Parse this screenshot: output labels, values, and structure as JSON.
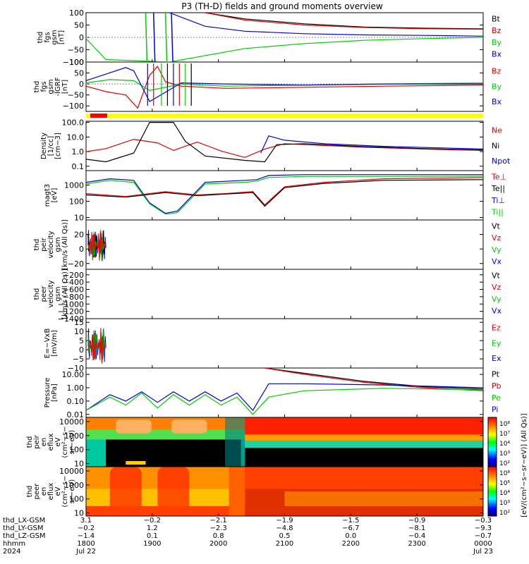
{
  "title": "P3 (TH-D) fields and ground moments overview",
  "colors": {
    "black": "#000000",
    "red": "#e00000",
    "green": "#00cc00",
    "blue": "#0000dd",
    "yellow": "#ffff00",
    "redbar": "#ff0000"
  },
  "panels": [
    {
      "id": "fgs",
      "ylabel": [
        "thd",
        "fgs",
        "gsm",
        "[nT]"
      ],
      "ticks": [
        "100",
        "50",
        "0",
        "−50",
        "−100"
      ],
      "tick_values": [
        100,
        50,
        0,
        -50,
        -100
      ],
      "ylim": [
        -100,
        100
      ],
      "legend": [
        {
          "text": "Bt",
          "color": "black"
        },
        {
          "text": "Bz",
          "color": "red"
        },
        {
          "text": "By",
          "color": "green"
        },
        {
          "text": "Bx",
          "color": "blue"
        }
      ]
    },
    {
      "id": "fgs_z",
      "ylabel": [
        "thd",
        "fgs",
        "gsm",
        "-IGRF",
        "[nT]"
      ],
      "ticks": [
        "100",
        "50",
        "0",
        "−50",
        "−100"
      ],
      "tick_values": [
        100,
        50,
        0,
        -50,
        -100
      ],
      "ylim": [
        -125,
        100
      ],
      "legend": [
        {
          "text": "Bz",
          "color": "red"
        },
        {
          "text": "By",
          "color": "green"
        },
        {
          "text": "Bx",
          "color": "blue"
        }
      ]
    },
    {
      "id": "density",
      "ylabel": [
        "Density",
        "[1/cc]",
        "[cm−3]"
      ],
      "ticks": [
        "100.0",
        "10.0",
        "1.0",
        "0.1"
      ],
      "tick_values": [
        100,
        10,
        1,
        0.1
      ],
      "ylim": [
        0.05,
        120
      ],
      "log": true,
      "legend": [
        {
          "text": "Ne",
          "color": "red"
        },
        {
          "text": "Ni",
          "color": "black"
        },
        {
          "text": "Npot",
          "color": "blue"
        }
      ]
    },
    {
      "id": "temp",
      "ylabel": [
        "magt3",
        "[eV]"
      ],
      "ticks": [
        "1000",
        "100",
        "10"
      ],
      "tick_values": [
        1000,
        100,
        10
      ],
      "ylim": [
        7,
        8000
      ],
      "log": true,
      "legend": [
        {
          "text": "Te⊥",
          "color": "red"
        },
        {
          "text": "Te||",
          "color": "black"
        },
        {
          "text": "Ti⊥",
          "color": "blue"
        },
        {
          "text": "Ti||",
          "color": "green"
        }
      ]
    },
    {
      "id": "peir_v",
      "ylabel": [
        "thd",
        "peir",
        "velocity",
        "gsm",
        "[km/s (All Qs)]"
      ],
      "ticks": [
        "20",
        "0",
        "−20"
      ],
      "tick_values": [
        20,
        0,
        -20
      ],
      "ylim": [
        -28,
        40
      ],
      "legend": [
        {
          "text": "Vt",
          "color": "black"
        },
        {
          "text": "Vz",
          "color": "red"
        },
        {
          "text": "Vy",
          "color": "green"
        },
        {
          "text": "Vx",
          "color": "blue"
        }
      ]
    },
    {
      "id": "peer_v",
      "ylabel": [
        "thd",
        "peer",
        "velocity",
        "gsm",
        "[km/s (All Qs)]"
      ],
      "ticks": [
        "−200",
        "−400",
        "−600",
        "−800",
        "−1000",
        "−1200",
        "−1400"
      ],
      "tick_values": [
        -200,
        -400,
        -600,
        -800,
        -1000,
        -1200,
        -1400
      ],
      "ylim": [
        -1400,
        -50
      ],
      "legend": [
        {
          "text": "Vt",
          "color": "black"
        },
        {
          "text": "Vz",
          "color": "red"
        },
        {
          "text": "Vy",
          "color": "green"
        },
        {
          "text": "Vx",
          "color": "blue"
        }
      ]
    },
    {
      "id": "efield",
      "ylabel": [
        "E=−VxB",
        "[mV/m]"
      ],
      "ticks": [
        "15",
        "10",
        "5",
        "0",
        "−5",
        "−10"
      ],
      "tick_values": [
        15,
        10,
        5,
        0,
        -5,
        -10
      ],
      "ylim": [
        -10,
        17
      ],
      "legend": [
        {
          "text": "Ez",
          "color": "red"
        },
        {
          "text": "Ey",
          "color": "green"
        },
        {
          "text": "Ex",
          "color": "blue"
        }
      ]
    },
    {
      "id": "pressure",
      "ylabel": [
        "Pressure",
        "[nPa]"
      ],
      "ticks": [
        "10.00",
        "1.00",
        "0.10",
        "0.01"
      ],
      "tick_values": [
        10,
        1,
        0.1,
        0.01
      ],
      "ylim": [
        0.006,
        30
      ],
      "log": true,
      "legend": [
        {
          "text": "Pt",
          "color": "black"
        },
        {
          "text": "Pb",
          "color": "red"
        },
        {
          "text": "Pe",
          "color": "green"
        },
        {
          "text": "Pi",
          "color": "blue"
        }
      ]
    },
    {
      "id": "peir_spec",
      "ylabel": [
        "thd",
        "peir",
        "en",
        "eflux",
        "eV",
        "(cm²−s−",
        "sr−eV)"
      ],
      "ticks": [
        "10000",
        "1000",
        "100",
        "10"
      ],
      "tick_values": [
        10000,
        1000,
        100,
        10
      ],
      "ylim": [
        6,
        20000
      ],
      "log": true
    },
    {
      "id": "peer_spec",
      "ylabel": [
        "thd",
        "peer",
        "en",
        "eflux",
        "eV",
        "(cm²−s−",
        "sr−eV)"
      ],
      "ticks": [
        "10000",
        "1000",
        "100",
        "10"
      ],
      "tick_values": [
        10000,
        1000,
        100,
        10
      ],
      "ylim": [
        6,
        20000
      ],
      "log": true
    }
  ],
  "colorbar": {
    "label": "[eV/(cm²−s−sr−eV)] (All Qs)]",
    "ticks_top": [
      "10⁸",
      "10⁷",
      "10⁴",
      "10³",
      "10²"
    ],
    "ticks_bottom": [
      "10⁸",
      "10⁶",
      "10⁴",
      "10³",
      "10²"
    ]
  },
  "xaxis": {
    "row_labels": [
      "thd_LX-GSM",
      "thd_LY-GSM",
      "thd_LZ-GSM",
      "hhmm",
      "2024"
    ],
    "ticks": [
      {
        "time": "1800",
        "lx": "3.1",
        "ly": "−0.2",
        "lz": "−1.4",
        "date": "Jul 22"
      },
      {
        "time": "1900",
        "lx": "−0.2",
        "ly": "1.2",
        "lz": "0.1",
        "date": ""
      },
      {
        "time": "2000",
        "lx": "−2.1",
        "ly": "−2.3",
        "lz": "0.8",
        "date": ""
      },
      {
        "time": "2100",
        "lx": "−1.9",
        "ly": "−4.8",
        "lz": "0.5",
        "date": ""
      },
      {
        "time": "2200",
        "lx": "−1.5",
        "ly": "−6.7",
        "lz": "0.0",
        "date": ""
      },
      {
        "time": "2300",
        "lx": "−0.9",
        "ly": "−8.1",
        "lz": "−0.4",
        "date": ""
      },
      {
        "time": "0000",
        "lx": "−0.3",
        "ly": "−9.3",
        "lz": "−0.7",
        "date": "Jul 23"
      }
    ]
  },
  "chart_data": {
    "type": "line",
    "title": "P3 (TH-D) fields and ground moments overview",
    "x_range": [
      "1800",
      "0000"
    ],
    "series_descriptions": [
      {
        "panel": "fgs",
        "name": "Bt",
        "t": [
          0.3,
          0.4,
          0.55,
          0.7,
          0.85,
          1.0
        ],
        "v": [
          100,
          75,
          55,
          42,
          37,
          35
        ]
      },
      {
        "panel": "fgs",
        "name": "Bz",
        "t": [
          0.3,
          0.4,
          0.55,
          0.7,
          0.85,
          1.0
        ],
        "v": [
          100,
          70,
          50,
          40,
          35,
          33
        ]
      },
      {
        "panel": "fgs",
        "name": "Bx",
        "t": [
          0.21,
          0.3,
          0.4,
          0.55,
          0.7,
          0.85,
          1.0
        ],
        "v": [
          100,
          45,
          25,
          15,
          10,
          8,
          5
        ]
      },
      {
        "panel": "fgs",
        "name": "By",
        "t": [
          0.0,
          0.05,
          0.21,
          0.4,
          0.55,
          0.7,
          0.85,
          1.0
        ],
        "v": [
          -5,
          -90,
          -100,
          -45,
          -25,
          -12,
          -5,
          0
        ]
      },
      {
        "panel": "fgs_z",
        "name": "Bz",
        "t": [
          0.0,
          0.05,
          0.1,
          0.13,
          0.16,
          0.18,
          0.2,
          0.24,
          0.35,
          0.55,
          0.75,
          1.0
        ],
        "v": [
          -10,
          -35,
          -50,
          -110,
          40,
          80,
          10,
          -10,
          -20,
          -15,
          -10,
          -5
        ]
      },
      {
        "panel": "fgs_z",
        "name": "By",
        "t": [
          0.0,
          0.06,
          0.12,
          0.16,
          0.24,
          0.35,
          0.55,
          0.75,
          1.0
        ],
        "v": [
          5,
          20,
          15,
          -30,
          0,
          -10,
          -5,
          0,
          5
        ]
      },
      {
        "panel": "fgs_z",
        "name": "Bx",
        "t": [
          0.0,
          0.05,
          0.1,
          0.12,
          0.16,
          0.24,
          0.35,
          0.55,
          0.75,
          1.0
        ],
        "v": [
          15,
          45,
          75,
          60,
          -80,
          5,
          0,
          -5,
          0,
          0
        ]
      },
      {
        "panel": "density",
        "name": "Ne",
        "t": [
          0.0,
          0.05,
          0.12,
          0.18,
          0.22,
          0.28,
          0.34,
          0.4,
          0.45,
          0.5,
          0.55,
          0.7,
          0.85,
          1.0
        ],
        "v": [
          1.0,
          1.6,
          7,
          4,
          1.2,
          4.5,
          1.1,
          0.4,
          1.5,
          3.5,
          3,
          2,
          1.5,
          1.2
        ]
      },
      {
        "panel": "density",
        "name": "Ni",
        "t": [
          0.0,
          0.05,
          0.12,
          0.16,
          0.22,
          0.25,
          0.3,
          0.4,
          0.45,
          0.48,
          0.55,
          0.7,
          0.85,
          1.0
        ],
        "v": [
          0.3,
          0.2,
          0.8,
          100,
          100,
          5,
          0.5,
          0.25,
          0.2,
          3,
          3.5,
          2.2,
          1.6,
          1.3
        ]
      },
      {
        "panel": "density",
        "name": "Npot",
        "t": [
          0.44,
          0.46,
          0.5,
          0.6,
          0.75,
          1.0
        ],
        "v": [
          0.8,
          12,
          6,
          3.5,
          2.3,
          1.5
        ]
      },
      {
        "panel": "temp",
        "name": "Ti⊥",
        "t": [
          0.0,
          0.06,
          0.12,
          0.16,
          0.2,
          0.23,
          0.3,
          0.4,
          0.43,
          0.46,
          0.55,
          0.7,
          1.0
        ],
        "v": [
          1500,
          2500,
          2000,
          80,
          18,
          25,
          1500,
          2000,
          2200,
          4000,
          4500,
          4500,
          4500
        ]
      },
      {
        "panel": "temp",
        "name": "Ti||",
        "t": [
          0.0,
          0.06,
          0.12,
          0.16,
          0.2,
          0.23,
          0.3,
          0.4,
          0.43,
          0.46,
          0.55,
          0.7,
          1.0
        ],
        "v": [
          1200,
          2000,
          1500,
          70,
          16,
          20,
          1200,
          1500,
          1800,
          3000,
          3500,
          3500,
          3600
        ]
      },
      {
        "panel": "temp",
        "name": "Te⊥",
        "t": [
          0.0,
          0.1,
          0.2,
          0.28,
          0.35,
          0.42,
          0.45,
          0.5,
          0.6,
          0.75,
          1.0
        ],
        "v": [
          300,
          200,
          400,
          250,
          300,
          400,
          60,
          800,
          1500,
          2500,
          3000
        ]
      },
      {
        "panel": "temp",
        "name": "Te||",
        "t": [
          0.0,
          0.1,
          0.2,
          0.28,
          0.35,
          0.42,
          0.45,
          0.5,
          0.6,
          0.75,
          1.0
        ],
        "v": [
          250,
          180,
          350,
          220,
          280,
          350,
          50,
          700,
          1300,
          2000,
          2200
        ]
      },
      {
        "panel": "pressure",
        "name": "Pt",
        "t": [
          0.45,
          0.55,
          0.7,
          0.85,
          1.0
        ],
        "v": [
          30,
          12,
          3,
          1.2,
          0.8
        ]
      },
      {
        "panel": "pressure",
        "name": "Pb",
        "t": [
          0.45,
          0.55,
          0.7,
          0.85,
          1.0
        ],
        "v": [
          30,
          10,
          2.5,
          1.0,
          0.6
        ]
      },
      {
        "panel": "pressure",
        "name": "Pi",
        "t": [
          0.0,
          0.06,
          0.1,
          0.14,
          0.18,
          0.22,
          0.26,
          0.3,
          0.34,
          0.38,
          0.42,
          0.46,
          0.55,
          0.75,
          1.0
        ],
        "v": [
          0.02,
          0.3,
          0.1,
          0.5,
          0.08,
          0.5,
          0.1,
          0.5,
          0.1,
          0.4,
          0.02,
          2.0,
          2.0,
          1.6,
          1.0
        ]
      },
      {
        "panel": "pressure",
        "name": "Pe",
        "t": [
          0.0,
          0.06,
          0.1,
          0.14,
          0.18,
          0.22,
          0.26,
          0.3,
          0.34,
          0.38,
          0.42,
          0.46,
          0.55,
          0.75,
          1.0
        ],
        "v": [
          0.02,
          0.2,
          0.05,
          0.4,
          0.03,
          0.3,
          0.05,
          0.3,
          0.05,
          0.2,
          0.01,
          0.2,
          0.6,
          0.9,
          0.7
        ]
      }
    ]
  }
}
